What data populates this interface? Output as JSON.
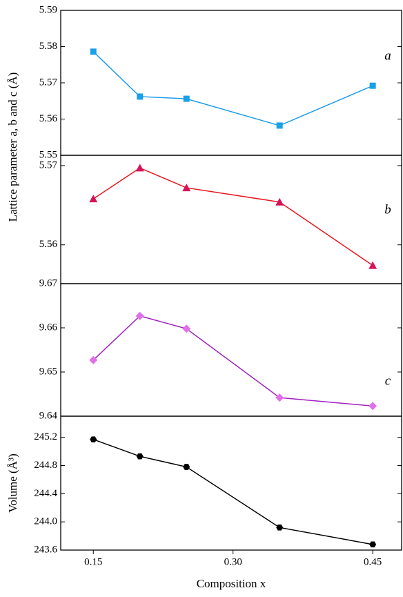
{
  "chart_data": [
    {
      "type": "line",
      "ylabel": "Lattice parameter a, b and c (Å)",
      "annotation": "a",
      "x": [
        0.15,
        0.2,
        0.25,
        0.35,
        0.45
      ],
      "values": [
        5.5786,
        5.5662,
        5.5656,
        5.5582,
        5.5692
      ],
      "color": "#1e9be8",
      "marker": "square",
      "marker_color": "#1aa0e8",
      "xlim": [
        0.115,
        0.481
      ],
      "ylim": [
        5.55,
        5.59
      ],
      "yticks": [
        5.55,
        5.56,
        5.57,
        5.58,
        5.59
      ]
    },
    {
      "type": "line",
      "annotation": "b",
      "x": [
        0.15,
        0.2,
        0.25,
        0.35,
        0.45
      ],
      "values": [
        5.5658,
        5.5697,
        5.5672,
        5.5654,
        5.5574
      ],
      "color": "#e8141e",
      "marker": "triangle",
      "marker_color": "#d4145a",
      "xlim": [
        0.115,
        0.481
      ],
      "ylim": [
        5.5551,
        5.5713
      ],
      "yticks": [
        5.56,
        5.57
      ]
    },
    {
      "type": "line",
      "annotation": "c",
      "x": [
        0.15,
        0.2,
        0.25,
        0.35,
        0.45
      ],
      "values": [
        9.6527,
        9.6627,
        9.6598,
        9.6442,
        9.6423
      ],
      "color": "#a020c0",
      "marker": "diamond",
      "marker_color": "#e070e8",
      "xlim": [
        0.115,
        0.481
      ],
      "ylim": [
        9.64,
        9.67
      ],
      "yticks": [
        9.64,
        9.65,
        9.66,
        9.67
      ]
    },
    {
      "type": "line",
      "ylabel": "Volume (Å³)",
      "xlabel": "Composition x",
      "x": [
        0.15,
        0.2,
        0.25,
        0.35,
        0.45
      ],
      "values": [
        245.17,
        244.93,
        244.78,
        243.92,
        243.68
      ],
      "color": "#000000",
      "marker": "hexagon",
      "marker_color": "#000000",
      "xlim": [
        0.115,
        0.481
      ],
      "ylim": [
        243.6,
        245.5
      ],
      "yticks": [
        {
          "value": 243.6,
          "label": "243.6"
        },
        {
          "value": 244,
          "label": "244.0"
        },
        {
          "value": 244.4,
          "label": "244.4"
        },
        {
          "value": 244.8,
          "label": "244.8"
        },
        {
          "value": 245.2,
          "label": "245.2"
        }
      ],
      "xticks": [
        0.15,
        {
          "value": 0.3,
          "label": "0.30"
        },
        0.45
      ]
    }
  ]
}
